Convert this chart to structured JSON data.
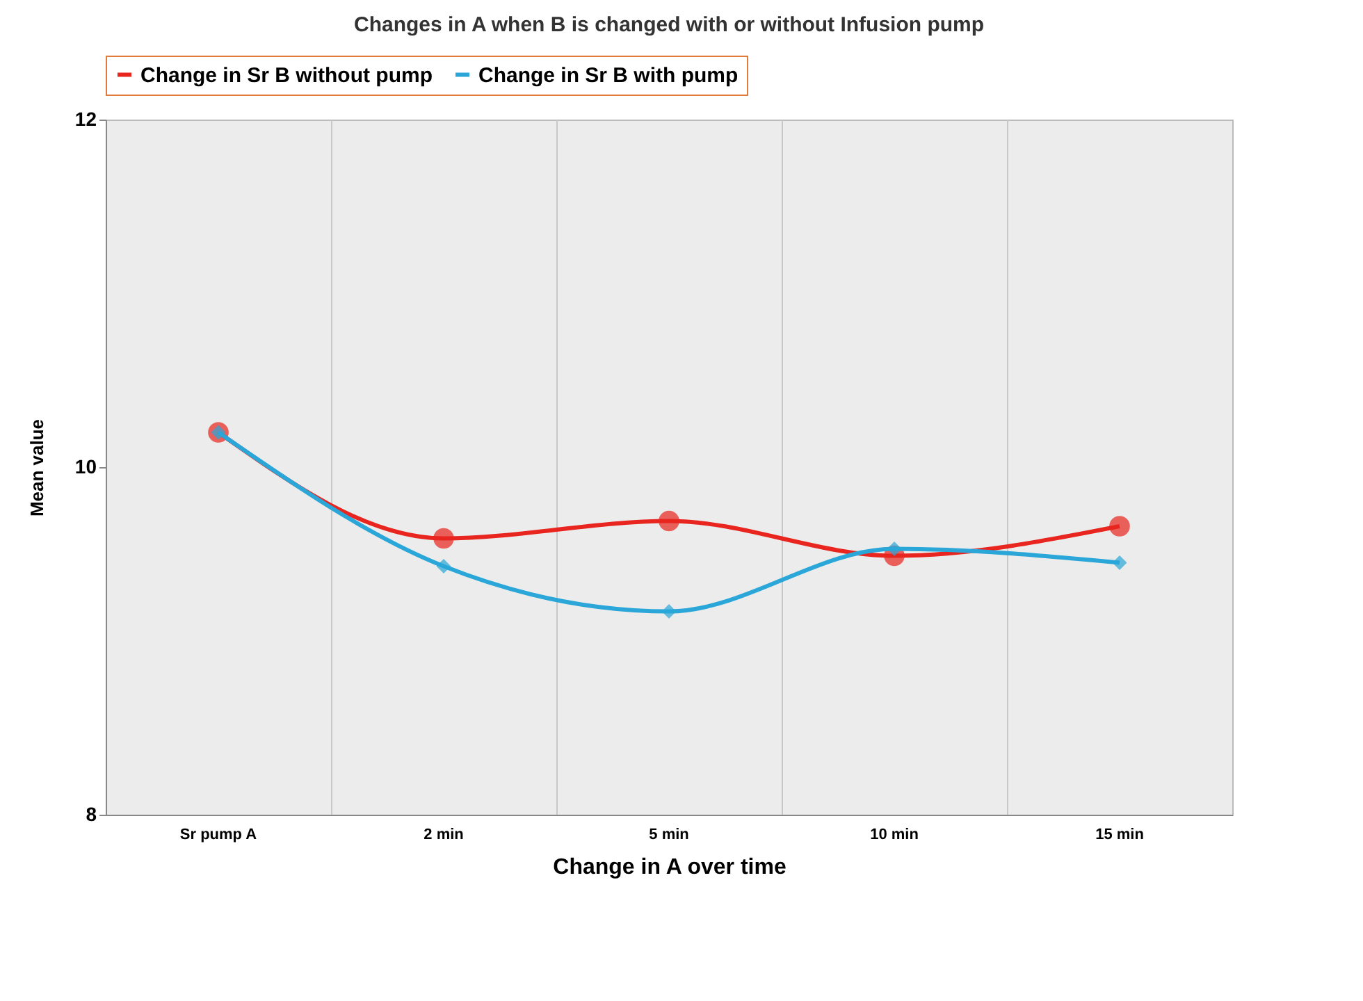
{
  "chart_data": {
    "type": "line",
    "title": "Changes in A when B is changed with or without Infusion pump",
    "xlabel": "Change in A over time",
    "ylabel": "Mean value",
    "categories": [
      "Sr pump A",
      "2 min",
      "5 min",
      "10 min",
      "15 min"
    ],
    "series": [
      {
        "name": "Change in Sr B without pump",
        "color": "#e8251e",
        "marker": "circle",
        "values": [
          10.2,
          9.59,
          9.69,
          9.49,
          9.66
        ]
      },
      {
        "name": "Change in Sr B with pump",
        "color": "#2aa7d8",
        "marker": "diamond",
        "values": [
          10.2,
          9.43,
          9.17,
          9.53,
          9.45
        ]
      }
    ],
    "ylim": [
      8,
      12
    ],
    "yticks": [
      8,
      10,
      12
    ],
    "grid": "x",
    "legend": "top",
    "line_style": "solid"
  }
}
